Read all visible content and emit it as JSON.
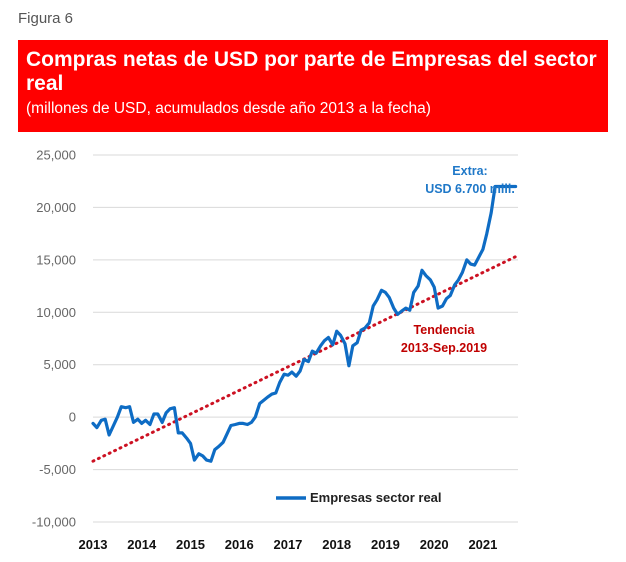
{
  "figure_label": "Figura 6",
  "colors": {
    "title_bg": "#ff0000",
    "series": "#0e6cc4",
    "trend": "#cc1122",
    "grid": "#d9d9d9"
  },
  "chart_data": {
    "type": "line",
    "title": "Compras netas de USD por parte de Empresas del sector real",
    "subtitle": "(millones de USD, acumulados desde año 2013 a la fecha)",
    "xlabel": "",
    "ylabel": "",
    "ylim": [
      -10000,
      25000
    ],
    "xlim": [
      2013.0,
      2021.72
    ],
    "yticks": [
      -10000,
      -5000,
      0,
      5000,
      10000,
      15000,
      20000,
      25000
    ],
    "ytick_labels": [
      "-10,000",
      "-5,000",
      "0",
      "5,000",
      "10,000",
      "15,000",
      "20,000",
      "25,000"
    ],
    "xtick_labels": [
      "2013",
      "2014",
      "2015",
      "2016",
      "2017",
      "2018",
      "2019",
      "2020",
      "2021"
    ],
    "grid": true,
    "legend_position": "bottom-center",
    "series": [
      {
        "name": "Empresas sector real",
        "style": "solid",
        "x": [
          2013.0,
          2013.08,
          2013.17,
          2013.25,
          2013.33,
          2013.42,
          2013.5,
          2013.58,
          2013.67,
          2013.75,
          2013.83,
          2013.92,
          2014.0,
          2014.08,
          2014.17,
          2014.25,
          2014.33,
          2014.42,
          2014.5,
          2014.58,
          2014.67,
          2014.75,
          2014.83,
          2014.92,
          2015.0,
          2015.08,
          2015.17,
          2015.25,
          2015.33,
          2015.42,
          2015.5,
          2015.58,
          2015.67,
          2015.75,
          2015.83,
          2015.92,
          2016.0,
          2016.08,
          2016.17,
          2016.25,
          2016.33,
          2016.42,
          2016.5,
          2016.58,
          2016.67,
          2016.75,
          2016.83,
          2016.92,
          2017.0,
          2017.08,
          2017.17,
          2017.25,
          2017.33,
          2017.42,
          2017.5,
          2017.58,
          2017.67,
          2017.75,
          2017.83,
          2017.92,
          2018.0,
          2018.08,
          2018.17,
          2018.25,
          2018.33,
          2018.42,
          2018.5,
          2018.58,
          2018.67,
          2018.75,
          2018.83,
          2018.92,
          2019.0,
          2019.08,
          2019.17,
          2019.25,
          2019.33,
          2019.42,
          2019.5,
          2019.58,
          2019.67,
          2019.75,
          2019.83,
          2019.92,
          2020.0,
          2020.08,
          2020.17,
          2020.25,
          2020.33,
          2020.42,
          2020.5,
          2020.58,
          2020.67,
          2020.75,
          2020.83,
          2020.92,
          2021.0,
          2021.08,
          2021.17,
          2021.25,
          2021.33,
          2021.42,
          2021.5,
          2021.58,
          2021.67
        ],
        "values": [
          -600,
          -1000,
          -300,
          -200,
          -1700,
          -800,
          0,
          1000,
          900,
          1000,
          -500,
          -200,
          -600,
          -300,
          -700,
          300,
          300,
          -500,
          400,
          800,
          900,
          -1500,
          -1500,
          -2000,
          -2500,
          -4100,
          -3500,
          -3700,
          -4100,
          -4200,
          -3100,
          -2800,
          -2400,
          -1600,
          -800,
          -700,
          -600,
          -600,
          -700,
          -500,
          0,
          1300,
          1600,
          1900,
          2200,
          2300,
          3300,
          4100,
          4000,
          4300,
          3900,
          4400,
          5500,
          5300,
          6300,
          6100,
          6800,
          7300,
          7600,
          6900,
          8200,
          7800,
          7000,
          4900,
          6800,
          7100,
          8300,
          8500,
          9000,
          10600,
          11200,
          12100,
          11900,
          11400,
          10400,
          9800,
          10100,
          10400,
          10200,
          11900,
          12500,
          14000,
          13500,
          13100,
          12400,
          10400,
          10600,
          11300,
          11600,
          12600,
          13100,
          13800,
          15000,
          14600,
          14500,
          15300,
          16000,
          17500,
          19500,
          22000,
          22000,
          22000,
          22000,
          22000,
          22000
        ]
      },
      {
        "name": "Tendencia 2013-Sep.2019",
        "style": "dotted",
        "x": [
          2013.0,
          2021.67
        ],
        "values": [
          -4200,
          15300
        ]
      }
    ],
    "annotations": {
      "extra_line1": "Extra:",
      "extra_line2": "USD 6.700 mill.",
      "trend_line1": "Tendencia",
      "trend_line2": "2013-Sep.2019"
    }
  }
}
